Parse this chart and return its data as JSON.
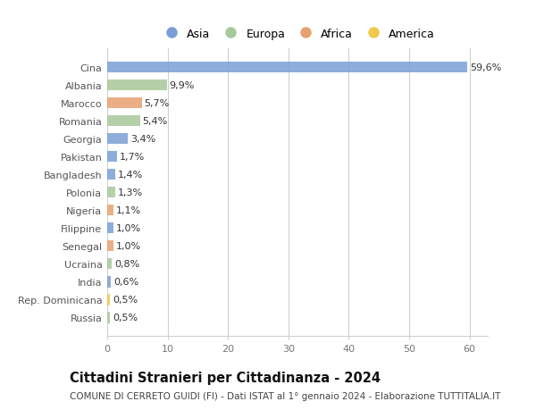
{
  "categories": [
    "Russia",
    "Rep. Dominicana",
    "India",
    "Ucraina",
    "Senegal",
    "Filippine",
    "Nigeria",
    "Polonia",
    "Bangladesh",
    "Pakistan",
    "Georgia",
    "Romania",
    "Marocco",
    "Albania",
    "Cina"
  ],
  "values": [
    0.5,
    0.5,
    0.6,
    0.8,
    1.0,
    1.0,
    1.1,
    1.3,
    1.4,
    1.7,
    3.4,
    5.4,
    5.7,
    9.9,
    59.6
  ],
  "labels": [
    "0,5%",
    "0,5%",
    "0,6%",
    "0,8%",
    "1,0%",
    "1,0%",
    "1,1%",
    "1,3%",
    "1,4%",
    "1,7%",
    "3,4%",
    "5,4%",
    "5,7%",
    "9,9%",
    "59,6%"
  ],
  "colors": [
    "#a8c89a",
    "#f0c84a",
    "#7b9fd4",
    "#a8c89a",
    "#e8a070",
    "#7b9fd4",
    "#e8a070",
    "#a8c89a",
    "#7b9fd4",
    "#7b9fd4",
    "#7b9fd4",
    "#a8c89a",
    "#e8a070",
    "#a8c89a",
    "#7b9fd4"
  ],
  "legend": [
    {
      "label": "Asia",
      "color": "#7b9fd4"
    },
    {
      "label": "Europa",
      "color": "#a8c89a"
    },
    {
      "label": "Africa",
      "color": "#e8a070"
    },
    {
      "label": "America",
      "color": "#f0c84a"
    }
  ],
  "xlim": [
    0,
    63
  ],
  "xticks": [
    0,
    10,
    20,
    30,
    40,
    50,
    60
  ],
  "title": "Cittadini Stranieri per Cittadinanza - 2024",
  "subtitle": "COMUNE DI CERRETO GUIDI (FI) - Dati ISTAT al 1° gennaio 2024 - Elaborazione TUTTITALIA.IT",
  "bg_color": "#ffffff",
  "grid_color": "#d0d0d0",
  "bar_height": 0.62,
  "label_fontsize": 8,
  "tick_fontsize": 8,
  "title_fontsize": 10.5,
  "subtitle_fontsize": 7.5,
  "legend_fontsize": 9
}
